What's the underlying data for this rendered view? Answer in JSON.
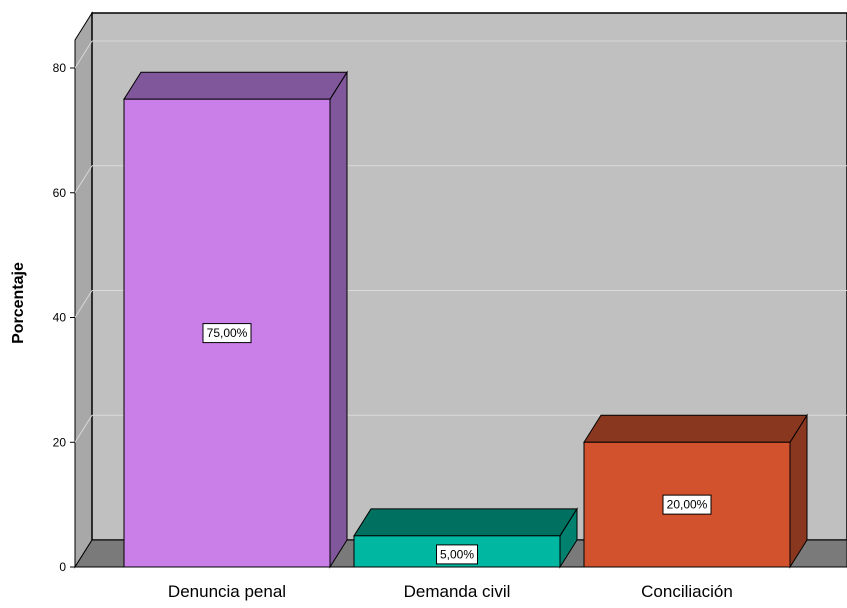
{
  "chart_data": {
    "type": "bar",
    "style": "3d",
    "categories": [
      "Denuncia penal",
      "Demanda civil",
      "Conciliación"
    ],
    "values": [
      75,
      5,
      20
    ],
    "data_labels": [
      "75,00%",
      "5,00%",
      "20,00%"
    ],
    "ylabel": "Porcentaje",
    "xlabel": "",
    "ylim": [
      0,
      80
    ],
    "yticks": [
      0,
      20,
      40,
      60,
      80
    ],
    "grid": true,
    "legend": "none",
    "colors": {
      "bars": [
        {
          "front": "#c97ee8",
          "top": "#7f579a",
          "side": "#7f579a"
        },
        {
          "front": "#00b8a2",
          "top": "#007060",
          "side": "#00806e"
        },
        {
          "front": "#d3522e",
          "top": "#8a3720",
          "side": "#8a3720"
        }
      ],
      "back_wall": "#c0c0c0",
      "side_wall": "#a8a8a8",
      "floor": "#7a7a7a",
      "gridline": "#d9d9d9"
    }
  }
}
